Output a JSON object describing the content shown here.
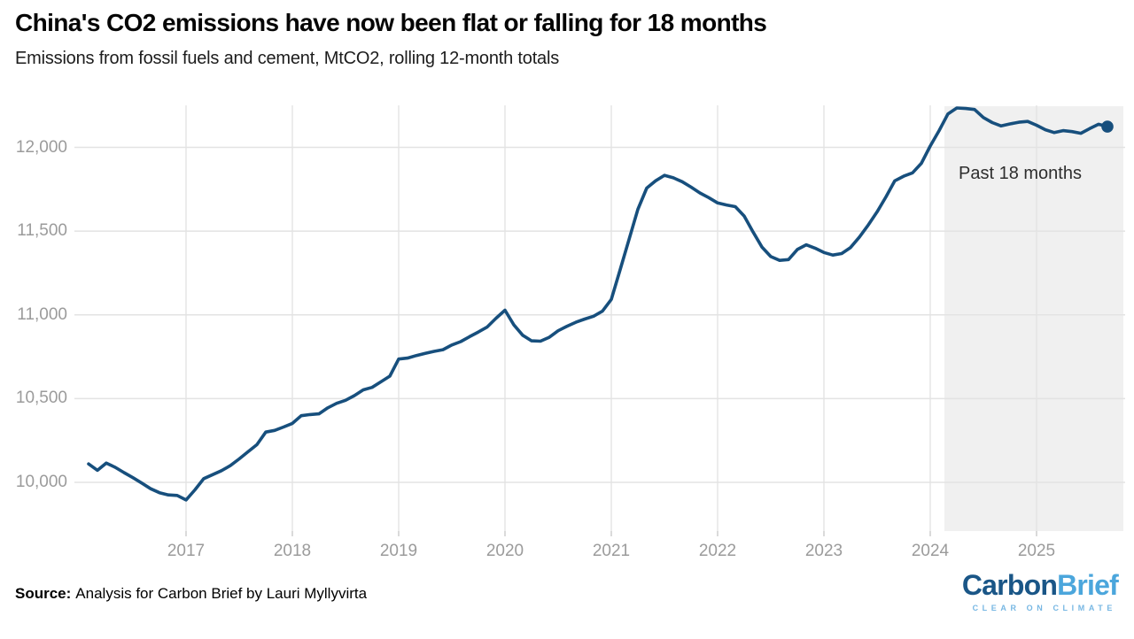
{
  "header": {
    "title": "China's CO2 emissions have now been flat or falling for 18 months",
    "subtitle": "Emissions from fossil fuels and cement, MtCO2, rolling 12-month totals"
  },
  "chart_data": {
    "type": "line",
    "series_name": "China CO2 emissions from fossil fuels and cement, rolling 12-month total",
    "unit": "MtCO2",
    "frequency": "monthly",
    "x_start": "2016-02",
    "x_end": "2025-09",
    "values": [
      10110,
      10072,
      10115,
      10090,
      10058,
      10028,
      9996,
      9962,
      9938,
      9925,
      9922,
      9895,
      9955,
      10022,
      10046,
      10070,
      10100,
      10140,
      10183,
      10225,
      10300,
      10310,
      10330,
      10352,
      10398,
      10405,
      10409,
      10445,
      10472,
      10490,
      10518,
      10552,
      10567,
      10600,
      10634,
      10736,
      10742,
      10757,
      10770,
      10782,
      10792,
      10820,
      10840,
      10870,
      10898,
      10928,
      10980,
      11028,
      10940,
      10878,
      10845,
      10843,
      10866,
      10905,
      10932,
      10956,
      10975,
      10992,
      11022,
      11092,
      11270,
      11450,
      11630,
      11757,
      11800,
      11833,
      11818,
      11795,
      11763,
      11728,
      11700,
      11668,
      11656,
      11646,
      11590,
      11495,
      11405,
      11348,
      11325,
      11330,
      11390,
      11418,
      11398,
      11372,
      11357,
      11366,
      11402,
      11464,
      11536,
      11615,
      11704,
      11800,
      11828,
      11848,
      11905,
      12008,
      12100,
      12200,
      12235,
      12232,
      12226,
      12178,
      12148,
      12128,
      12140,
      12150,
      12155,
      12132,
      12105,
      12088,
      12100,
      12094,
      12084,
      12112,
      12138,
      12124
    ],
    "x_tick_labels": [
      "2017",
      "2018",
      "2019",
      "2020",
      "2021",
      "2022",
      "2023",
      "2024",
      "2025"
    ],
    "y_tick_values": [
      10000,
      10500,
      11000,
      11500,
      12000
    ],
    "y_tick_labels": [
      "10,000",
      "10,500",
      "11,000",
      "11,500",
      "12,000"
    ],
    "ylim": [
      9850,
      12270
    ],
    "grid": true,
    "legend": "none",
    "annotation": "Past 18 months",
    "shaded_last_months": 18,
    "endpoint_dot": true,
    "last_value": 12124,
    "colors": {
      "line": "#174f7d",
      "shade": "#f0f0f0",
      "gridline": "#e3e3e3",
      "tick": "#cbcbcb",
      "axis_text": "#9b9b9b"
    }
  },
  "footer": {
    "source_label": "Source:",
    "source_text": "Analysis for Carbon Brief by Lauri Myllyvirta"
  },
  "logo": {
    "word_dark": "Carbon",
    "word_light": "Brief",
    "tagline": "CLEAR ON CLIMATE"
  }
}
